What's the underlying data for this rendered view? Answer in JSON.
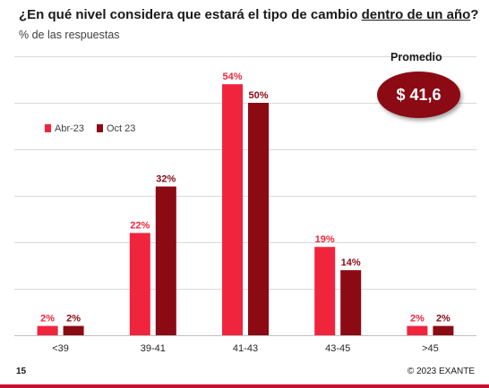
{
  "title_main": "¿En qué nivel considera que estará el tipo de cambio ",
  "title_underlined": "dentro de un año",
  "title_end": "?",
  "subtitle": "% de las respuestas",
  "promedio": {
    "label": "Promedio",
    "value": "$ 41,6"
  },
  "footer": {
    "page_number": "15",
    "credit": "© 2023 EXANTE"
  },
  "colors": {
    "abr": "#f0253d",
    "oct": "#8b0a14",
    "grid": "#d9d9d9",
    "badge": "#8b0a14"
  },
  "chart_data": {
    "type": "bar",
    "categories": [
      "<39",
      "39-41",
      "41-43",
      "43-45",
      ">45"
    ],
    "series": [
      {
        "name": "Abr-23",
        "values": [
          2,
          22,
          54,
          19,
          2
        ],
        "labels": [
          "2%",
          "22%",
          "54%",
          "19%",
          "2%"
        ]
      },
      {
        "name": "Oct 23",
        "values": [
          2,
          32,
          50,
          14,
          2
        ],
        "labels": [
          "2%",
          "32%",
          "50%",
          "14%",
          "2%"
        ]
      }
    ],
    "ylim": [
      0,
      60
    ],
    "grid": true,
    "legend": "top-left",
    "xlabel": "",
    "ylabel": ""
  }
}
